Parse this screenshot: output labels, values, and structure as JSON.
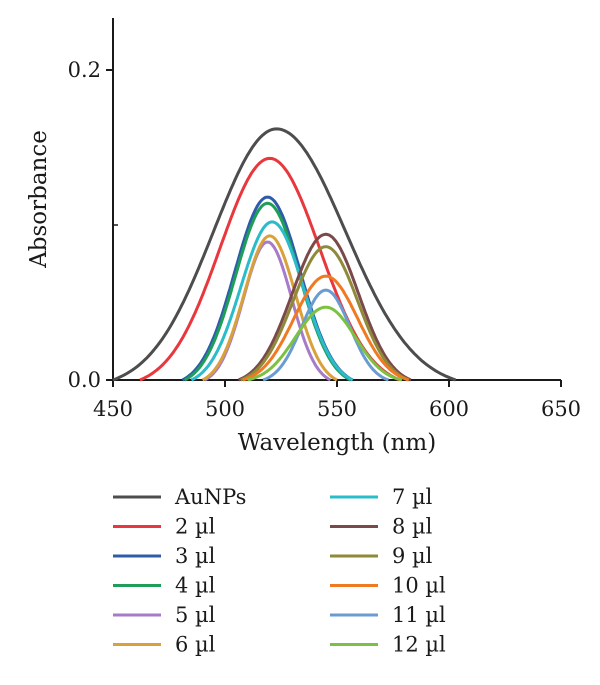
{
  "chart_data": {
    "type": "line",
    "xlabel": "Wavelength (nm)",
    "ylabel": "Absorbance",
    "xlim": [
      450,
      650
    ],
    "ylim": [
      0,
      0.23
    ],
    "x_ticks": [
      450,
      500,
      550,
      600,
      650
    ],
    "x_tick_labels": [
      "450",
      "500",
      "550",
      "600",
      "650"
    ],
    "y_ticks": [
      0.0,
      0.2
    ],
    "y_tick_labels": [
      "0.0",
      "0.2"
    ],
    "grid": false,
    "legend_position": "below",
    "series": [
      {
        "name": "AuNPs",
        "color": "#4d4d4d",
        "peak_x": 523,
        "peak_y": 0.162,
        "x_start": 450,
        "x_end": 603
      },
      {
        "name": "2 µl",
        "color": "#e8383d",
        "peak_x": 520,
        "peak_y": 0.143,
        "x_start": 462,
        "x_end": 578
      },
      {
        "name": "3 µl",
        "color": "#2e5caa",
        "peak_x": 519,
        "peak_y": 0.118,
        "x_start": 481,
        "x_end": 557
      },
      {
        "name": "4 µl",
        "color": "#1f9e5a",
        "peak_x": 519,
        "peak_y": 0.114,
        "x_start": 482,
        "x_end": 556
      },
      {
        "name": "5 µl",
        "color": "#a77bc8",
        "peak_x": 519,
        "peak_y": 0.089,
        "x_start": 491,
        "x_end": 547
      },
      {
        "name": "6 µl",
        "color": "#d9a13a",
        "peak_x": 520,
        "peak_y": 0.093,
        "x_start": 490,
        "x_end": 550
      },
      {
        "name": "7 µl",
        "color": "#2bbcc9",
        "peak_x": 521,
        "peak_y": 0.102,
        "x_start": 485,
        "x_end": 557
      },
      {
        "name": "8 µl",
        "color": "#7a4a4a",
        "peak_x": 545,
        "peak_y": 0.094,
        "x_start": 506,
        "x_end": 583
      },
      {
        "name": "9 µl",
        "color": "#8f8a3a",
        "peak_x": 545,
        "peak_y": 0.086,
        "x_start": 507,
        "x_end": 582
      },
      {
        "name": "10 µl",
        "color": "#f07a22",
        "peak_x": 545,
        "peak_y": 0.067,
        "x_start": 508,
        "x_end": 582
      },
      {
        "name": "11 µl",
        "color": "#6a9bd1",
        "peak_x": 545,
        "peak_y": 0.058,
        "x_start": 517,
        "x_end": 573
      },
      {
        "name": "12 µl",
        "color": "#7cc142",
        "peak_x": 545,
        "peak_y": 0.047,
        "x_start": 510,
        "x_end": 579
      }
    ]
  }
}
